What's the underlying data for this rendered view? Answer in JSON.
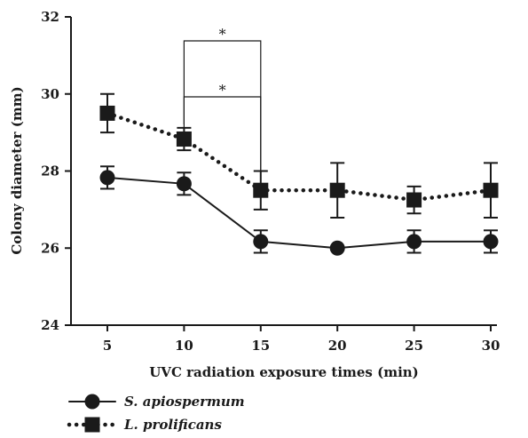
{
  "chart_data": {
    "type": "line",
    "title": "",
    "xlabel": "UVC radiation exposure times (min)",
    "ylabel": "Colony diameter (mm)",
    "x": [
      5,
      10,
      15,
      20,
      25,
      30
    ],
    "x_ticks": [
      "5",
      "10",
      "15",
      "20",
      "25",
      "30"
    ],
    "ylim": [
      24,
      32
    ],
    "y_ticks": [
      "24",
      "26",
      "28",
      "30",
      "32"
    ],
    "grid": false,
    "legend_position": "bottom-left",
    "series": [
      {
        "name": "S. apiospermum",
        "marker": "circle",
        "line_style": "solid",
        "color": "#1a1a1a",
        "values": [
          27.83,
          27.67,
          26.17,
          26.0,
          26.17,
          26.17
        ],
        "errors": [
          0.29,
          0.29,
          0.29,
          0.0,
          0.29,
          0.29
        ]
      },
      {
        "name": "L. prolificans",
        "marker": "square",
        "line_style": "dotted",
        "color": "#1a1a1a",
        "values": [
          29.5,
          28.83,
          27.5,
          27.5,
          27.25,
          27.5
        ],
        "errors": [
          0.5,
          0.29,
          0.5,
          0.71,
          0.35,
          0.71
        ]
      }
    ],
    "annotations": [
      {
        "type": "significance",
        "label": "*",
        "from_x": 10,
        "to_x": 15,
        "level": "upper"
      },
      {
        "type": "significance",
        "label": "*",
        "from_x": 10,
        "to_x": 15,
        "level": "lower"
      }
    ]
  }
}
